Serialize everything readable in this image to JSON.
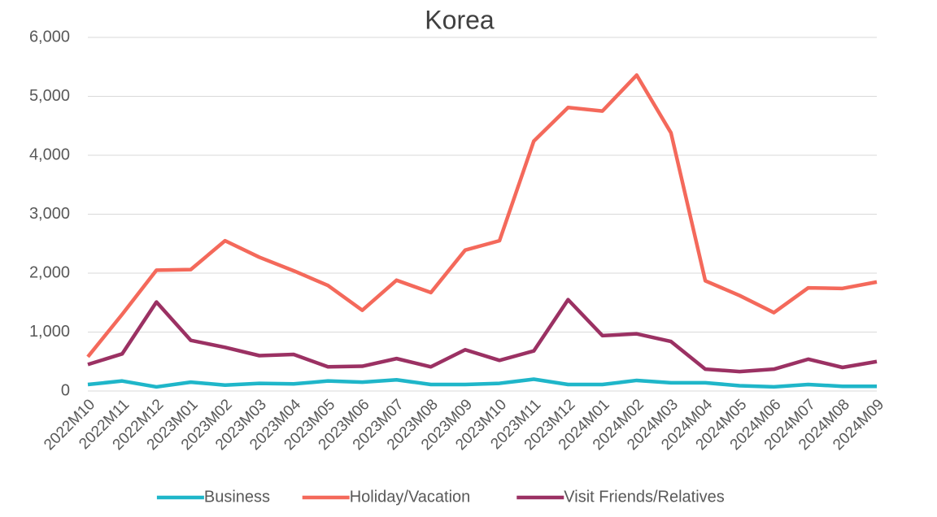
{
  "chart_data": {
    "type": "line",
    "title": "Korea",
    "categories": [
      "2022M10",
      "2022M11",
      "2022M12",
      "2023M01",
      "2023M02",
      "2023M03",
      "2023M04",
      "2023M05",
      "2023M06",
      "2023M07",
      "2023M08",
      "2023M09",
      "2023M10",
      "2023M11",
      "2023M12",
      "2024M01",
      "2024M02",
      "2024M03",
      "2024M04",
      "2024M05",
      "2024M06",
      "2024M07",
      "2024M08",
      "2024M09"
    ],
    "series": [
      {
        "name": "Business",
        "color": "#1fb6c9",
        "values": [
          110,
          170,
          70,
          150,
          100,
          130,
          120,
          170,
          150,
          190,
          110,
          110,
          130,
          200,
          110,
          110,
          180,
          140,
          140,
          90,
          70,
          110,
          80,
          80
        ]
      },
      {
        "name": "Holiday/Vacation",
        "color": "#f4695b",
        "values": [
          580,
          1300,
          2050,
          2060,
          2550,
          2270,
          2040,
          1790,
          1370,
          1880,
          1670,
          2390,
          2550,
          4240,
          4810,
          4750,
          5360,
          4380,
          1870,
          1620,
          1330,
          1750,
          1740,
          1850
        ]
      },
      {
        "name": "Visit Friends/Relatives",
        "color": "#9b3163",
        "values": [
          450,
          630,
          1510,
          860,
          740,
          600,
          620,
          410,
          420,
          550,
          410,
          700,
          520,
          680,
          1550,
          940,
          970,
          840,
          370,
          330,
          370,
          540,
          400,
          500
        ]
      }
    ],
    "ylim": [
      0,
      6000
    ],
    "yticks": [
      0,
      {
        "value": 1000,
        "label": "1,000"
      },
      {
        "value": 2000,
        "label": "2,000"
      },
      {
        "value": 3000,
        "label": "3,000"
      },
      {
        "value": 4000,
        "label": "4,000"
      },
      {
        "value": 5000,
        "label": "5,000"
      },
      {
        "value": 6000,
        "label": "6,000"
      }
    ],
    "grid": true,
    "legend": "bottom"
  }
}
